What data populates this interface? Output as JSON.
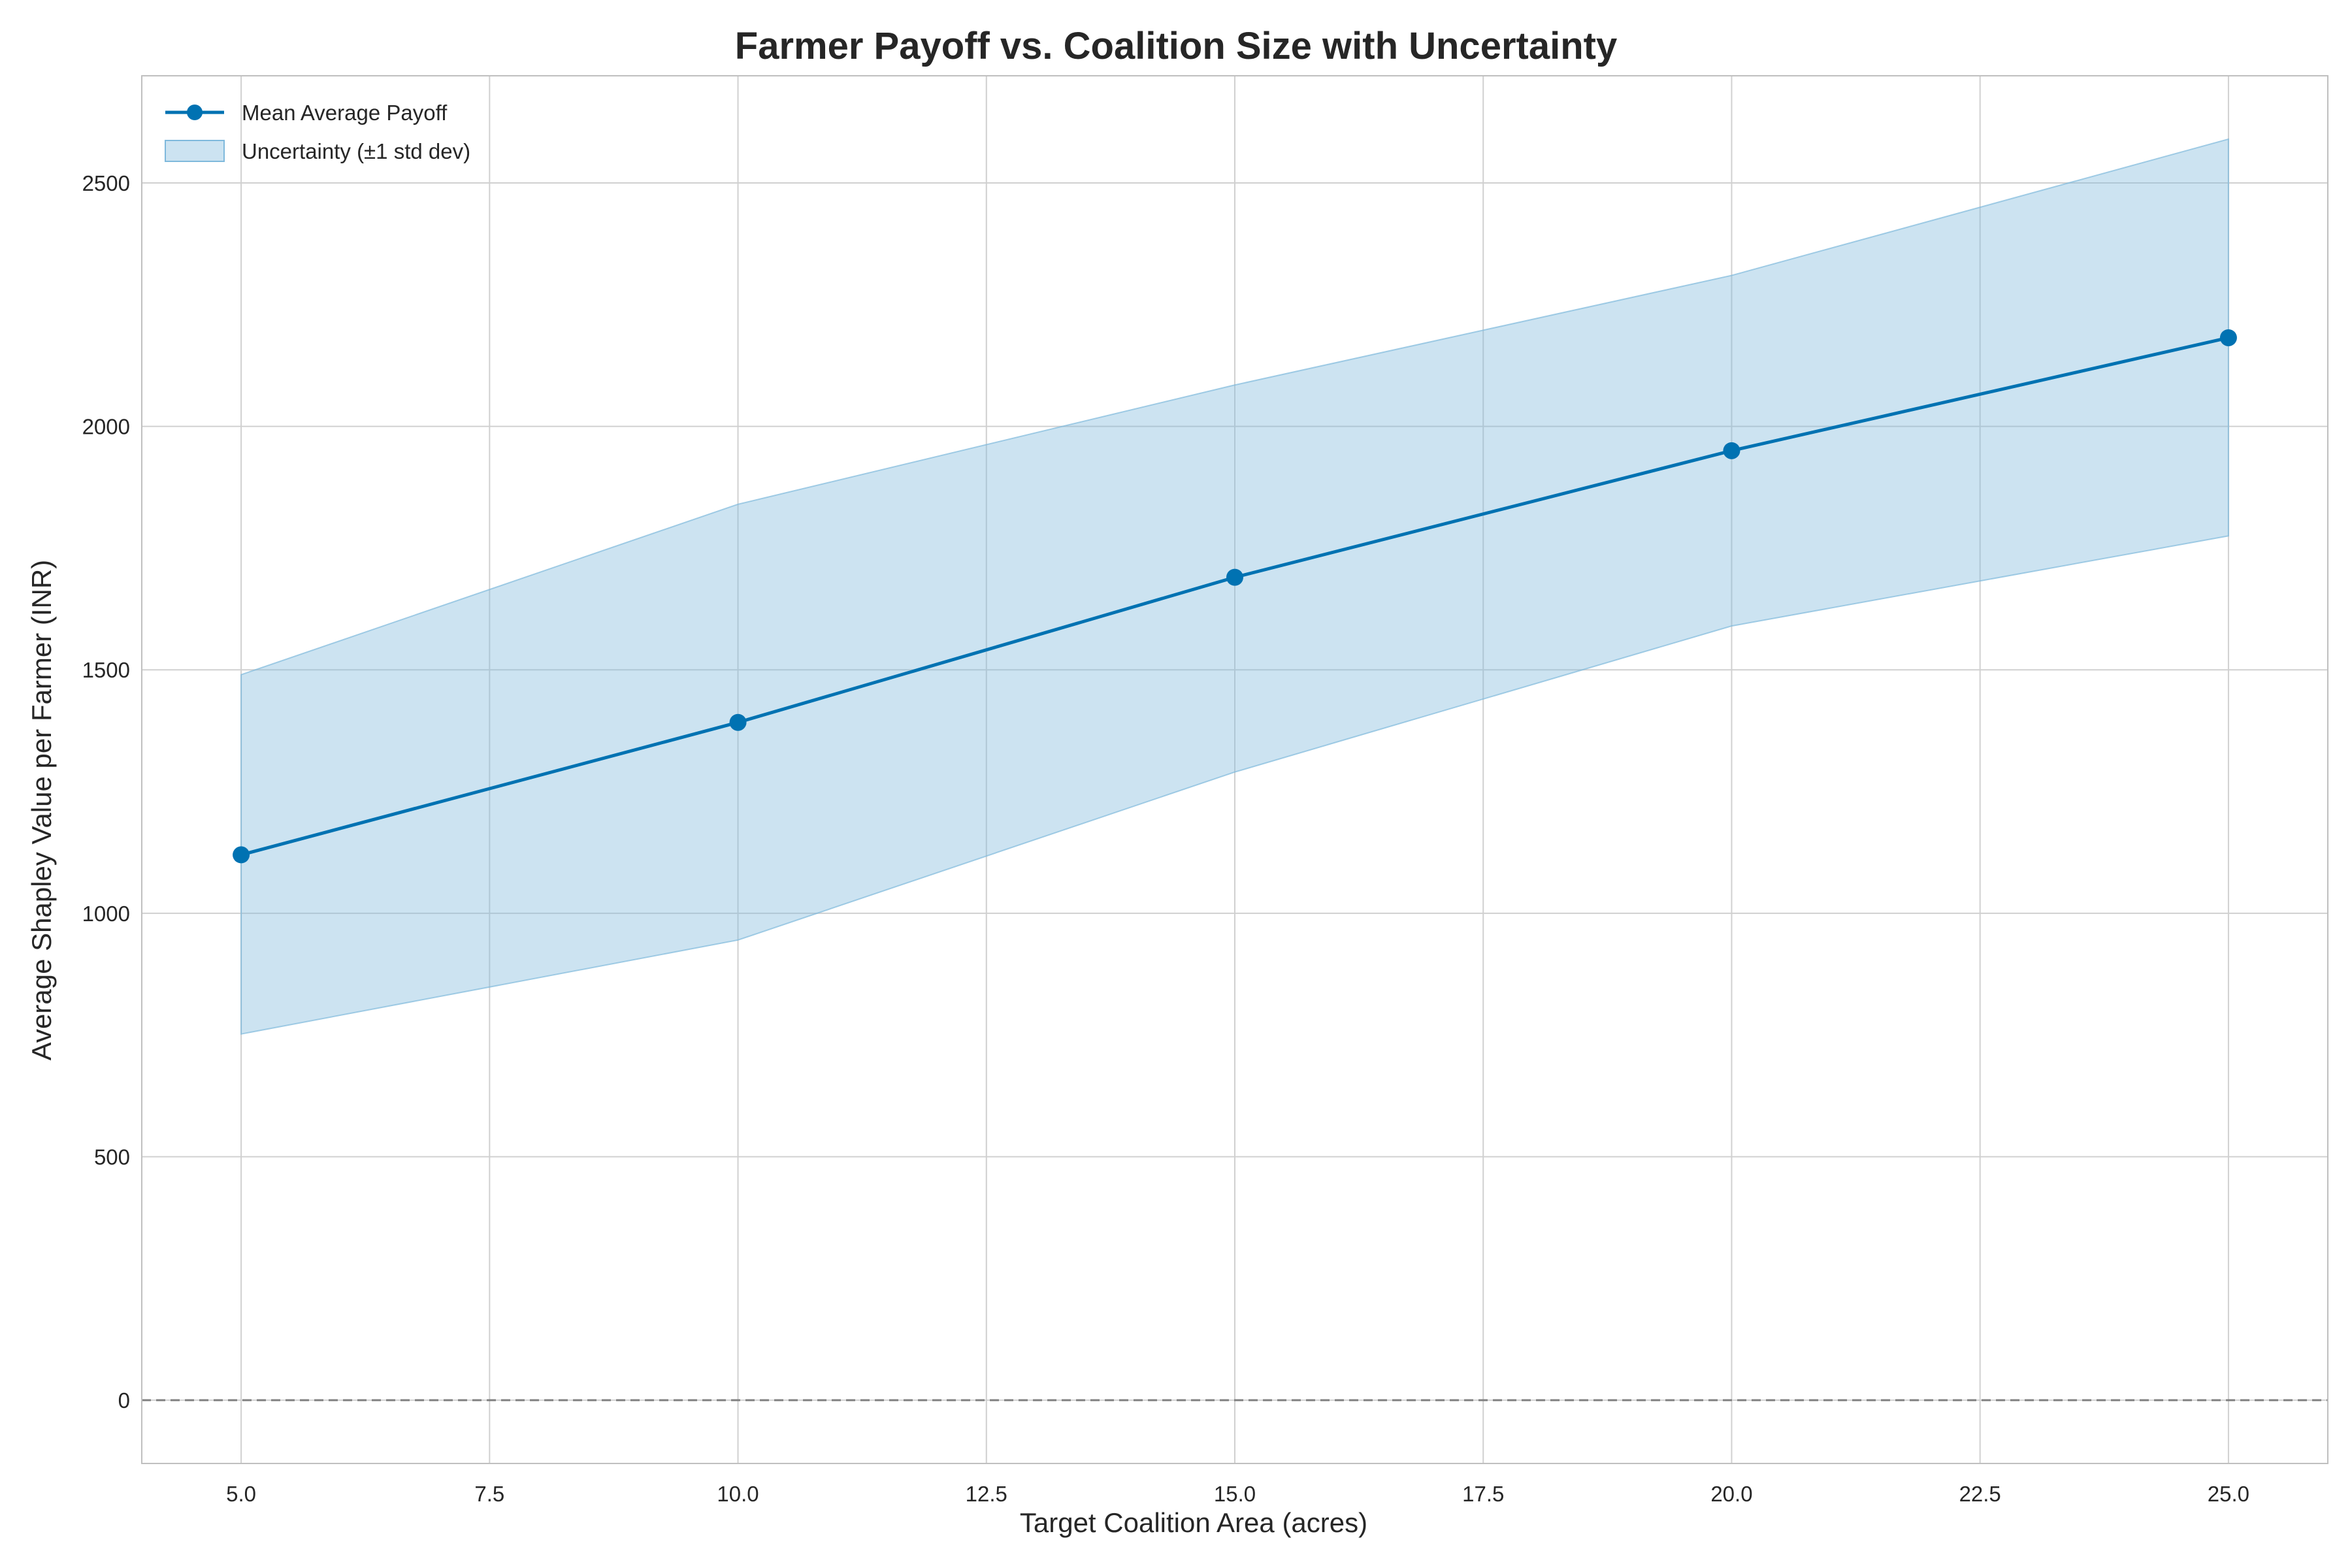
{
  "chart_data": {
    "type": "line",
    "title": "Farmer Payoff vs. Coalition Size with Uncertainty",
    "xlabel": "Target Coalition Area (acres)",
    "ylabel": "Average Shapley Value per Farmer (INR)",
    "x": [
      5,
      10,
      15,
      20,
      25
    ],
    "series": [
      {
        "name": "Mean Average Payoff",
        "values": [
          1120,
          1392,
          1690,
          1950,
          2182
        ],
        "color": "#0072b2",
        "marker": "circle"
      }
    ],
    "band": {
      "name": "Uncertainty (±1 std dev)",
      "lower": [
        752,
        945,
        1290,
        1590,
        1775
      ],
      "upper": [
        1490,
        1840,
        2085,
        2310,
        2590
      ],
      "color": "#7fb9dc"
    },
    "reference_line": {
      "y": 0,
      "style": "dashed",
      "color": "#808080"
    },
    "xlim": [
      4.0,
      26.0
    ],
    "ylim": [
      -130,
      2720
    ],
    "x_ticks": [
      "5.0",
      "7.5",
      "10.0",
      "12.5",
      "15.0",
      "17.5",
      "20.0",
      "22.5",
      "25.0"
    ],
    "y_ticks": [
      "0",
      "500",
      "1000",
      "1500",
      "2000",
      "2500"
    ],
    "grid": true,
    "legend_position": "top-left"
  }
}
